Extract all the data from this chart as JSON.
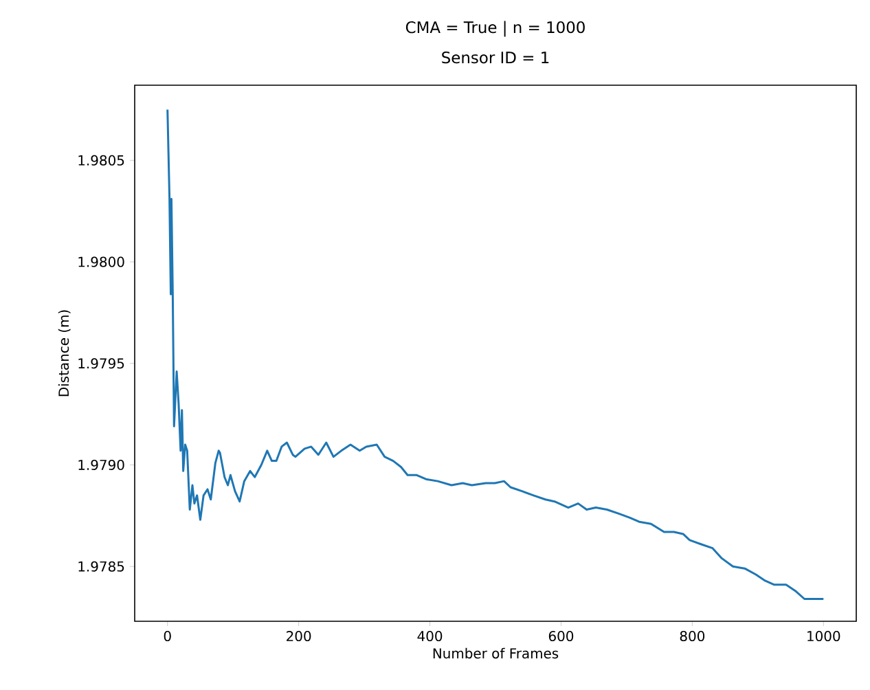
{
  "chart_data": {
    "type": "line",
    "title": "CMA = True | n = 1000",
    "subtitle": "Sensor ID = 1",
    "xlabel": "Number of Frames",
    "ylabel": "Distance (m)",
    "xlim": [
      -50,
      1050
    ],
    "ylim": [
      1.97823,
      1.98087
    ],
    "xticks": [
      0,
      200,
      400,
      600,
      800,
      1000
    ],
    "yticks": [
      {
        "value": 1.9785,
        "label": "1.9785"
      },
      {
        "value": 1.979,
        "label": "1.9790"
      },
      {
        "value": 1.9795,
        "label": "1.9795"
      },
      {
        "value": 1.98,
        "label": "1.9800"
      },
      {
        "value": 1.9805,
        "label": "1.9805"
      }
    ],
    "grid": false,
    "marker": "none",
    "line_style": "solid",
    "series": [
      {
        "color": "#1f77b4",
        "x": [
          0,
          3,
          5,
          6,
          8,
          10,
          14,
          17,
          20,
          22,
          24,
          27,
          30,
          34,
          38,
          41,
          45,
          50,
          55,
          61,
          66,
          73,
          78,
          80,
          87,
          92,
          96,
          103,
          110,
          117,
          126,
          133,
          143,
          152,
          159,
          166,
          174,
          182,
          191,
          195,
          209,
          219,
          230,
          242,
          253,
          265,
          279,
          293,
          303,
          319,
          331,
          344,
          356,
          366,
          380,
          394,
          412,
          433,
          450,
          464,
          485,
          499,
          513,
          523,
          541,
          558,
          576,
          590,
          611,
          626,
          639,
          653,
          670,
          688,
          705,
          719,
          737,
          757,
          772,
          786,
          796,
          813,
          831,
          845,
          862,
          880,
          897,
          911,
          925,
          943,
          957,
          971,
          988,
          1000
        ],
        "values": [
          1.98075,
          1.98032,
          1.97984,
          1.98031,
          1.97984,
          1.97919,
          1.97946,
          1.9793,
          1.97907,
          1.97927,
          1.97897,
          1.9791,
          1.97907,
          1.97878,
          1.9789,
          1.97881,
          1.97885,
          1.97873,
          1.97885,
          1.97888,
          1.97883,
          1.97901,
          1.97907,
          1.97906,
          1.97894,
          1.9789,
          1.97895,
          1.97887,
          1.97882,
          1.97892,
          1.97897,
          1.97894,
          1.979,
          1.97907,
          1.97902,
          1.97902,
          1.97909,
          1.97911,
          1.97905,
          1.97904,
          1.97908,
          1.97909,
          1.97905,
          1.97911,
          1.97904,
          1.97907,
          1.9791,
          1.97907,
          1.97909,
          1.9791,
          1.97904,
          1.97902,
          1.97899,
          1.97895,
          1.97895,
          1.97893,
          1.97892,
          1.9789,
          1.97891,
          1.9789,
          1.97891,
          1.97891,
          1.97892,
          1.97889,
          1.97887,
          1.97885,
          1.97883,
          1.97882,
          1.97879,
          1.97881,
          1.97878,
          1.97879,
          1.97878,
          1.97876,
          1.97874,
          1.97872,
          1.97871,
          1.97867,
          1.97867,
          1.97866,
          1.97863,
          1.97861,
          1.97859,
          1.97854,
          1.9785,
          1.97849,
          1.97846,
          1.97843,
          1.97841,
          1.97841,
          1.97838,
          1.97834,
          1.97834,
          1.97834
        ]
      }
    ]
  }
}
